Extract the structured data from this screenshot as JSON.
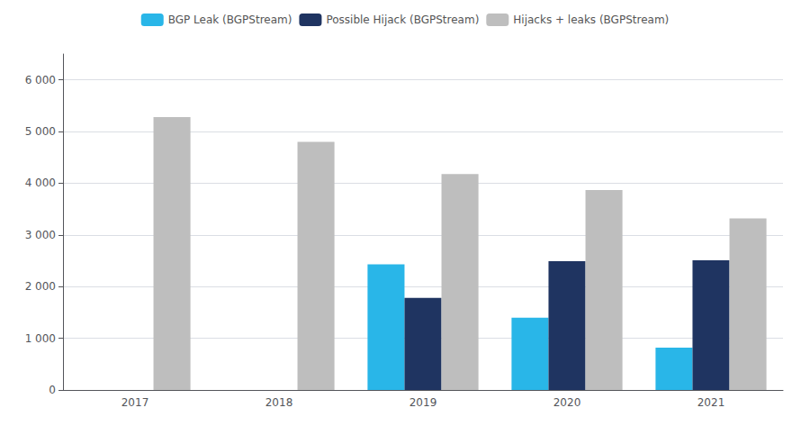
{
  "chart_data": {
    "type": "bar",
    "categories": [
      "2017",
      "2018",
      "2019",
      "2020",
      "2021"
    ],
    "series": [
      {
        "name": "BGP Leak (BGPStream)",
        "color": "#29B6E8",
        "values": [
          0,
          0,
          2430,
          1400,
          820
        ]
      },
      {
        "name": "Possible Hijack (BGPStream)",
        "color": "#1F3461",
        "values": [
          0,
          0,
          1780,
          2490,
          2510
        ]
      },
      {
        "name": "Hijacks + leaks (BGPStream)",
        "color": "#BEBEBE",
        "values": [
          5280,
          4800,
          4180,
          3870,
          3320
        ]
      }
    ],
    "ylim": [
      0,
      6500
    ],
    "yticks": [
      0,
      {
        "value": 1000,
        "label": "1 000"
      },
      {
        "value": 2000,
        "label": "2 000"
      },
      {
        "value": 3000,
        "label": "3 000"
      },
      {
        "value": 4000,
        "label": "4 000"
      },
      {
        "value": 5000,
        "label": "5 000"
      },
      {
        "value": 6000,
        "label": "6 000"
      }
    ],
    "grid": true,
    "legend": "top"
  }
}
